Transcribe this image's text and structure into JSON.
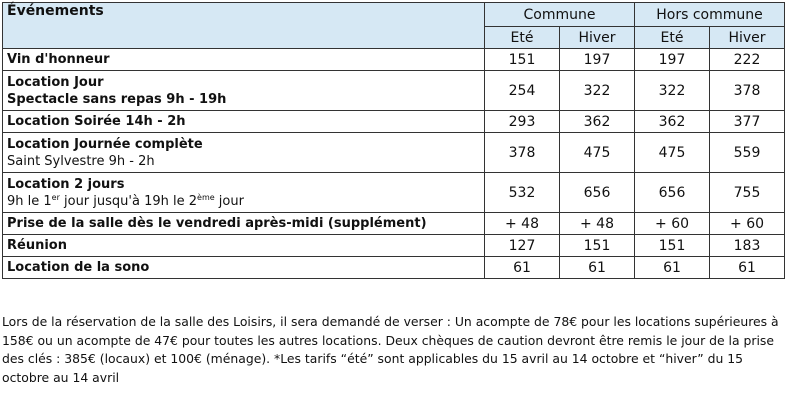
{
  "table": {
    "header": {
      "events": "Événements",
      "commune": "Commune",
      "hors_commune": "Hors commune",
      "ete": "Eté",
      "hiver": "Hiver"
    },
    "rows": [
      {
        "label": "Vin d'honneur",
        "values": [
          "151",
          "197",
          "197",
          "222"
        ]
      },
      {
        "label": "Location Jour",
        "sub": "Spectacle sans repas 9h - 19h",
        "values": [
          "254",
          "322",
          "322",
          "378"
        ]
      },
      {
        "label": "Location Soirée 14h - 2h",
        "values": [
          "293",
          "362",
          "362",
          "377"
        ]
      },
      {
        "label": "Location Journée complète",
        "sub": "Saint Sylvestre 9h - 2h",
        "values": [
          "378",
          "475",
          "475",
          "559"
        ]
      },
      {
        "label": "Location 2 jours",
        "sub_parts": {
          "a": "9h le 1",
          "a_sup": "er",
          "b": " jour jusqu'à 19h le 2",
          "b_sup": "ème",
          "c": " jour"
        },
        "values": [
          "532",
          "656",
          "656",
          "755"
        ]
      },
      {
        "label": "Prise de la salle dès le vendredi après-midi (supplément)",
        "values": [
          "+ 48",
          "+ 48",
          "+ 60",
          "+ 60"
        ]
      },
      {
        "label": "Réunion",
        "values": [
          "127",
          "151",
          "151",
          "183"
        ]
      },
      {
        "label": "Location de la sono",
        "values": [
          "61",
          "61",
          "61",
          "61"
        ]
      }
    ]
  },
  "note": "Lors de la réservation de la salle des Loisirs, il sera demandé de verser : Un acompte de 78€ pour les locations supérieures à 158€ ou un acompte de 47€ pour toutes les autres locations. Deux chèques de caution devront être remis le jour de la prise des clés : 385€ (locaux) et 100€ (ménage). *Les tarifs “été” sont applicables du 15 avril au 14 octobre et “hiver” du 15 octobre au 14 avril"
}
